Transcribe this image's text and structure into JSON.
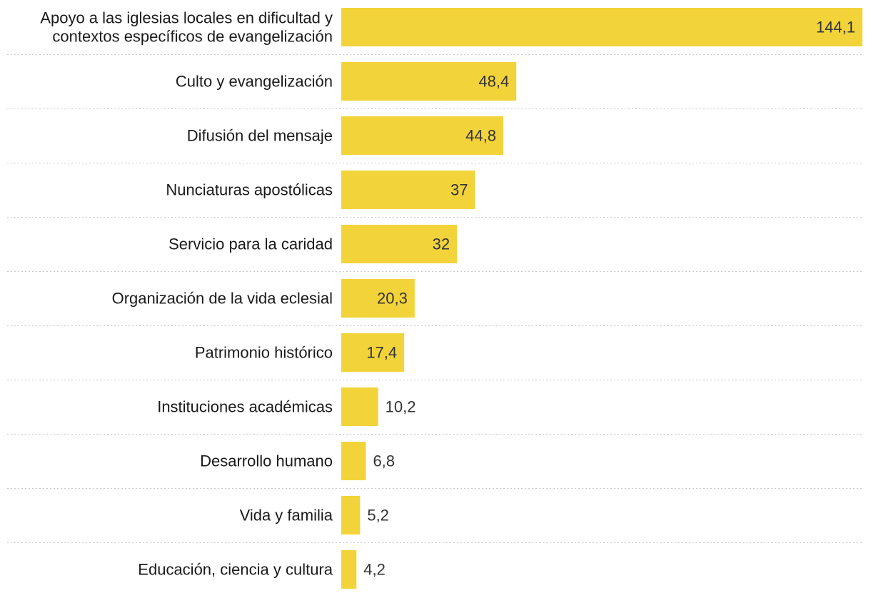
{
  "chart_data": {
    "type": "bar",
    "orientation": "horizontal",
    "title": "",
    "xlabel": "",
    "ylabel": "",
    "categories": [
      [
        "Apoyo a las iglesias locales en dificultad y",
        "contextos específicos de evangelización"
      ],
      [
        "Culto y evangelización"
      ],
      [
        "Difusión del mensaje"
      ],
      [
        "Nunciaturas apostólicas"
      ],
      [
        "Servicio para la caridad"
      ],
      [
        "Organización de la vida eclesial"
      ],
      [
        "Patrimonio histórico"
      ],
      [
        "Instituciones académicas"
      ],
      [
        "Desarrollo humano"
      ],
      [
        "Vida y familia"
      ],
      [
        "Educación, ciencia y cultura"
      ]
    ],
    "values": [
      144.1,
      48.4,
      44.8,
      37,
      32,
      20.3,
      17.4,
      10.2,
      6.8,
      5.2,
      4.2
    ],
    "value_labels": [
      "144,1",
      "48,4",
      "44,8",
      "37",
      "32",
      "20,3",
      "17,4",
      "10,2",
      "6,8",
      "5,2",
      "4,2"
    ],
    "xlim": [
      0,
      144.1
    ],
    "grid": false,
    "legend": "none",
    "colors": {
      "bar": "#f2d43a",
      "text": "#1a1a1a",
      "value_text": "#333333",
      "separator": "#c8c8c8"
    }
  }
}
